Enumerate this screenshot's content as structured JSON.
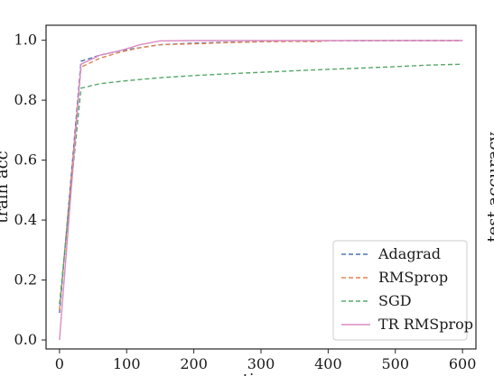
{
  "chart_data": {
    "type": "line",
    "xlabel": "time",
    "ylabel": "train acc",
    "right_label": "test accuracy",
    "xlim": [
      -20,
      620
    ],
    "ylim": [
      -0.03,
      1.05
    ],
    "xticks": [
      0,
      100,
      200,
      300,
      400,
      500,
      600
    ],
    "xtick_labels": [
      "0",
      "100",
      "200",
      "300",
      "400",
      "500",
      "600"
    ],
    "yticks": [
      0.0,
      0.2,
      0.4,
      0.6,
      0.8,
      1.0
    ],
    "ytick_labels": [
      "0.0",
      "0.2",
      "0.4",
      "0.6",
      "0.8",
      "1.0"
    ],
    "grid": false,
    "legend_position": "lower-right",
    "series": [
      {
        "name": "Adagrad",
        "color": "#4c72b0",
        "dash": "dashed",
        "x": [
          0,
          32,
          60,
          90,
          120,
          150,
          200,
          250,
          300,
          350,
          400,
          450,
          500,
          550,
          600
        ],
        "y": [
          0.09,
          0.93,
          0.95,
          0.965,
          0.975,
          0.985,
          0.99,
          0.993,
          0.995,
          0.997,
          0.998,
          0.998,
          0.999,
          0.999,
          0.999
        ]
      },
      {
        "name": "RMSprop",
        "color": "#dd8452",
        "dash": "dashed",
        "x": [
          0,
          32,
          60,
          90,
          120,
          150,
          200,
          250,
          300,
          350,
          380,
          400,
          450,
          500,
          550,
          600
        ],
        "y": [
          0.1,
          0.91,
          0.94,
          0.96,
          0.975,
          0.985,
          0.988,
          0.992,
          0.995,
          0.996,
          0.995,
          0.998,
          0.999,
          0.999,
          0.999,
          0.999
        ]
      },
      {
        "name": "SGD",
        "color": "#55a868",
        "dash": "dashed",
        "x": [
          0,
          32,
          60,
          100,
          150,
          200,
          250,
          300,
          350,
          400,
          450,
          500,
          550,
          600
        ],
        "y": [
          0.12,
          0.84,
          0.855,
          0.865,
          0.875,
          0.882,
          0.888,
          0.893,
          0.898,
          0.903,
          0.907,
          0.912,
          0.917,
          0.92
        ]
      },
      {
        "name": "TR RMSprop",
        "color": "#da8bc3",
        "dash": "solid",
        "x": [
          0,
          32,
          60,
          90,
          120,
          150,
          200,
          250,
          300,
          350,
          400,
          450,
          500,
          550,
          600
        ],
        "y": [
          0.0,
          0.92,
          0.95,
          0.965,
          0.985,
          0.998,
          0.999,
          0.999,
          0.999,
          0.999,
          0.999,
          0.999,
          0.999,
          0.999,
          0.999
        ]
      }
    ]
  }
}
